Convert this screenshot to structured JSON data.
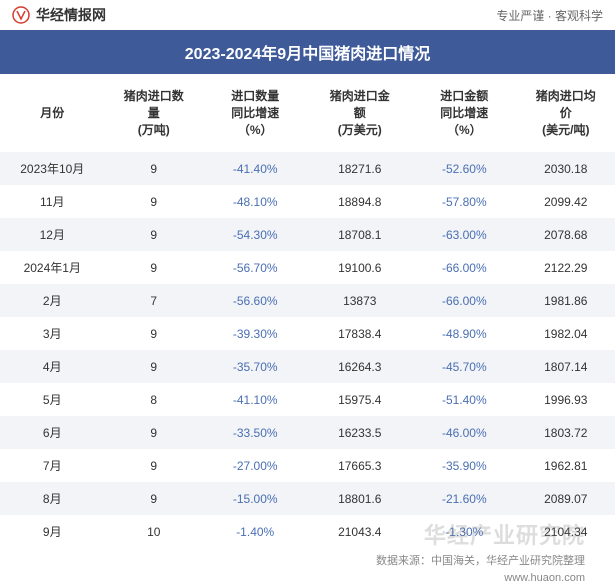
{
  "header": {
    "logo_text": "华经情报网",
    "tagline": "专业严谨 · 客观科学"
  },
  "title": "2023-2024年9月中国猪肉进口情况",
  "columns": [
    "月份",
    "猪肉进口数\n量\n(万吨)",
    "进口数量\n同比增速\n（%）",
    "猪肉进口金\n额\n(万美元)",
    "进口金额\n同比增速\n（%）",
    "猪肉进口均\n价\n(美元/吨)"
  ],
  "column_widths": [
    "17%",
    "16%",
    "17%",
    "17%",
    "17%",
    "16%"
  ],
  "rows": [
    {
      "month": "2023年10月",
      "qty": "9",
      "qty_growth": "-41.40%",
      "amount": "18271.6",
      "amt_growth": "-52.60%",
      "price": "2030.18"
    },
    {
      "month": "11月",
      "qty": "9",
      "qty_growth": "-48.10%",
      "amount": "18894.8",
      "amt_growth": "-57.80%",
      "price": "2099.42"
    },
    {
      "month": "12月",
      "qty": "9",
      "qty_growth": "-54.30%",
      "amount": "18708.1",
      "amt_growth": "-63.00%",
      "price": "2078.68"
    },
    {
      "month": "2024年1月",
      "qty": "9",
      "qty_growth": "-56.70%",
      "amount": "19100.6",
      "amt_growth": "-66.00%",
      "price": "2122.29"
    },
    {
      "month": "2月",
      "qty": "7",
      "qty_growth": "-56.60%",
      "amount": "13873",
      "amt_growth": "-66.00%",
      "price": "1981.86"
    },
    {
      "month": "3月",
      "qty": "9",
      "qty_growth": "-39.30%",
      "amount": "17838.4",
      "amt_growth": "-48.90%",
      "price": "1982.04"
    },
    {
      "month": "4月",
      "qty": "9",
      "qty_growth": "-35.70%",
      "amount": "16264.3",
      "amt_growth": "-45.70%",
      "price": "1807.14"
    },
    {
      "month": "5月",
      "qty": "8",
      "qty_growth": "-41.10%",
      "amount": "15975.4",
      "amt_growth": "-51.40%",
      "price": "1996.93"
    },
    {
      "month": "6月",
      "qty": "9",
      "qty_growth": "-33.50%",
      "amount": "16233.5",
      "amt_growth": "-46.00%",
      "price": "1803.72"
    },
    {
      "month": "7月",
      "qty": "9",
      "qty_growth": "-27.00%",
      "amount": "17665.3",
      "amt_growth": "-35.90%",
      "price": "1962.81"
    },
    {
      "month": "8月",
      "qty": "9",
      "qty_growth": "-15.00%",
      "amount": "18801.6",
      "amt_growth": "-21.60%",
      "price": "2089.07"
    },
    {
      "month": "9月",
      "qty": "10",
      "qty_growth": "-1.40%",
      "amount": "21043.4",
      "amt_growth": "-1.30%",
      "price": "2104.34"
    }
  ],
  "footer": {
    "source": "数据来源：中国海关，华经产业研究院整理",
    "url": "www.huaon.com"
  },
  "watermark": "华经产业研究院",
  "colors": {
    "title_bg": "#3e5a99",
    "title_fg": "#ffffff",
    "stripe": "#f2f4f7",
    "neg_text": "#4a6fb3",
    "text": "#333333",
    "logo": "#d43c2f"
  }
}
